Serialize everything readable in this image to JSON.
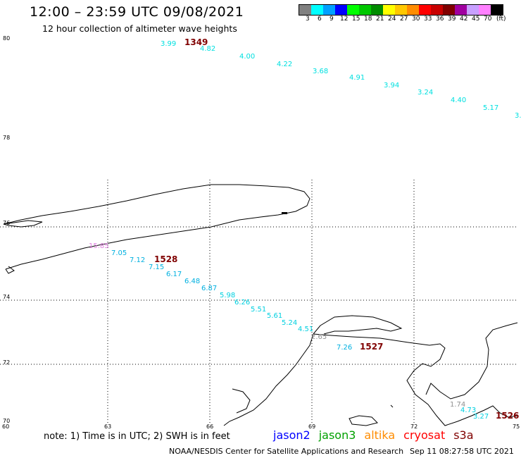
{
  "header": {
    "title": "12:00 – 23:59 UTC 09/08/2021",
    "subtitle": "12 hour collection of altimeter wave heights"
  },
  "legend": {
    "colors": [
      "#808080",
      "#00ffff",
      "#00a0ff",
      "#0000ff",
      "#00ff00",
      "#00c800",
      "#008c00",
      "#ffff00",
      "#ffc800",
      "#ff8c00",
      "#ff0000",
      "#c80000",
      "#800000",
      "#a000a0",
      "#c8a0ff",
      "#ff80ff",
      "#000000"
    ],
    "labels": [
      "3",
      "6",
      "9",
      "12",
      "15",
      "18",
      "21",
      "24",
      "27",
      "30",
      "33",
      "36",
      "39",
      "42",
      "45",
      "70"
    ],
    "unit": "(ft)"
  },
  "axes": {
    "y_ticks": [
      "80",
      "78",
      "76",
      "74",
      "72",
      "70"
    ],
    "x_ticks": [
      "60",
      "63",
      "66",
      "69",
      "72",
      "75"
    ]
  },
  "tracks": [
    {
      "id": "1349",
      "color": "#00e0e0",
      "points": [
        [
          "3.99",
          "#00e0e0"
        ],
        [
          "4.82",
          "#00e0e0"
        ],
        [
          "4.00",
          "#00e0e0"
        ],
        [
          "4.22",
          "#00e0e0"
        ],
        [
          "3.68",
          "#00e0e0"
        ],
        [
          "4.91",
          "#00e0e0"
        ],
        [
          "3.94",
          "#00e0e0"
        ],
        [
          "3.24",
          "#00e0e0"
        ],
        [
          "4.40",
          "#00e0e0"
        ],
        [
          "5.17",
          "#00e0e0"
        ],
        [
          "3.",
          "#00e0e0"
        ]
      ]
    },
    {
      "id": "1528",
      "color": "#00c0e0",
      "points": [
        [
          "15.85",
          "#e080e0"
        ],
        [
          "7.05",
          "#00b0e0"
        ],
        [
          "7.12",
          "#00b0e0"
        ],
        [
          "7.15",
          "#00b0e0"
        ],
        [
          "6.17",
          "#00b0e0"
        ],
        [
          "6.48",
          "#00b0e0"
        ],
        [
          "6.87",
          "#00b0e0"
        ],
        [
          "5.98",
          "#00d0e0"
        ],
        [
          "6.26",
          "#00d0e0"
        ],
        [
          "5.51",
          "#00d0e0"
        ],
        [
          "5.61",
          "#00d0e0"
        ],
        [
          "5.24",
          "#00d0e0"
        ],
        [
          "4.51",
          "#00d0e0"
        ],
        [
          "2.65",
          "#909090"
        ],
        [
          "7.26",
          "#00b0e0"
        ]
      ]
    },
    {
      "id": "1527",
      "color": "#800000",
      "points": []
    },
    {
      "id": "1526",
      "color": "#800000",
      "points": [
        [
          "1.74",
          "#909090"
        ],
        [
          "4.73",
          "#00d0e0"
        ],
        [
          "3.27",
          "#00d0e0"
        ]
      ]
    }
  ],
  "footer": {
    "note": "note:  1) Time is in UTC; 2) SWH is in feet",
    "satellites": [
      {
        "name": "jason2",
        "color": "#0000ff"
      },
      {
        "name": "jason3",
        "color": "#00a000"
      },
      {
        "name": "altika",
        "color": "#ff8c00"
      },
      {
        "name": "cryosat",
        "color": "#ff0000"
      },
      {
        "name": "s3a",
        "color": "#800000"
      }
    ],
    "credit": "NOAA/NESDIS Center for Satellite Applications and Research",
    "timestamp": "Sep 11 08:27:58 UTC 2021"
  },
  "map": {
    "projection_labels_shown": true,
    "grid": "dotted"
  }
}
